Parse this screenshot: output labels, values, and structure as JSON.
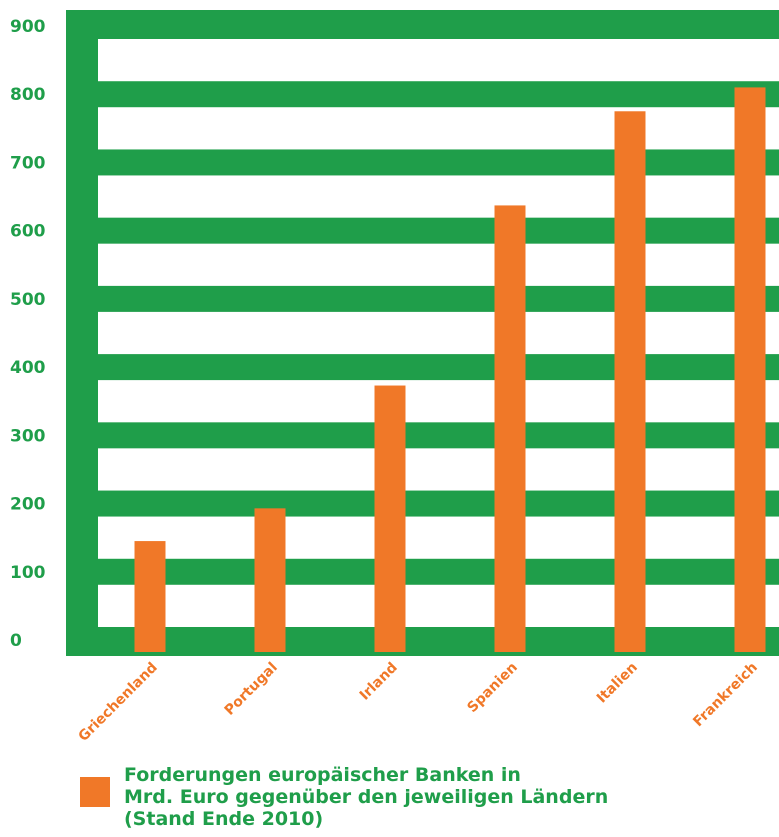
{
  "chart_data": {
    "type": "bar",
    "categories": [
      "Griechenland",
      "Portugal",
      "Irland",
      "Spanien",
      "Italien",
      "Frankreich"
    ],
    "series": [
      {
        "name": "Forderungen europäischer Banken in Mrd. Euro gegenüber den jeweiligen Ländern (Stand Ende 2010)",
        "values": [
          145,
          193,
          373,
          637,
          775,
          810
        ]
      }
    ],
    "yticks": [
      "0",
      "100",
      "200",
      "300",
      "400",
      "500",
      "600",
      "700",
      "800",
      "900"
    ],
    "ylim": [
      0,
      900
    ],
    "grid": "horizontal bands",
    "legend_position": "bottom",
    "colors": {
      "bar": "#f07828",
      "grid": "#1f9e4a",
      "background": "#ffffff"
    }
  },
  "legend": {
    "label": "Forderungen europäischer Banken in\nMrd. Euro gegenüber den jeweiligen Ländern\n(Stand Ende 2010)"
  }
}
